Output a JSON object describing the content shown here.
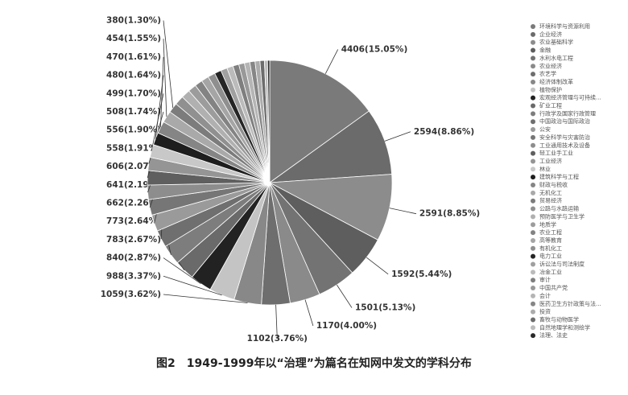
{
  "chart_data": {
    "type": "pie",
    "title": "图2　1949-1999年以“治理”为篇名在知网中发文的学科分布",
    "categories": [
      "环境科学与资源利用",
      "企业经济",
      "农业基础科学",
      "金融",
      "水利水电工程",
      "农业经济",
      "农艺学",
      "经济体制改革",
      "植物保护",
      "宏观经济管理与可持续...",
      "矿业工程",
      "行政学及国家行政管理",
      "中国政治与国际政治",
      "公安",
      "安全科学与灾害防治",
      "工业通用技术及设备",
      "轻工业手工业",
      "工业经济",
      "林业",
      "建筑科学与工程",
      "财政与税收",
      "无机化工",
      "贸易经济",
      "公路与水路运输",
      "预防医学与卫生学",
      "地质学",
      "农业工程",
      "高等教育",
      "有机化工",
      "电力工业",
      "诉讼法与司法制度",
      "冶金工业",
      "审计",
      "中国共产党",
      "会计",
      "医药卫生方针政策与法...",
      "投资",
      "畜牧与动物医学",
      "自然地理学和测绘学",
      "法理、法史"
    ],
    "values": [
      4406,
      2594,
      2591,
      1592,
      1501,
      1170,
      1102,
      1059,
      988,
      840,
      783,
      773,
      662,
      641,
      606,
      558,
      556,
      508,
      499,
      480,
      470,
      454,
      380,
      360,
      340,
      320,
      300,
      290,
      280,
      260,
      250,
      240,
      230,
      220,
      210,
      200,
      190,
      170,
      120,
      83
    ],
    "value_labels": [
      "4406(15.05%)",
      "2594(8.86%)",
      "2591(8.85%)",
      "1592(5.44%)",
      "1501(5.13%)",
      "1170(4.00%)",
      "1102(3.76%)",
      "1059(3.62%)",
      "988(3.37%)",
      "840(2.87%)",
      "783(2.67%)",
      "773(2.64%)",
      "662(2.26%)",
      "641(2.19%)",
      "606(2.07%)",
      "558(1.91%)",
      "556(1.90%)",
      "508(1.74%)",
      "499(1.70%)",
      "480(1.64%)",
      "470(1.61%)",
      "454(1.55%)",
      "380(1.30%)",
      null,
      null,
      null,
      null,
      null,
      null,
      null,
      null,
      null,
      null,
      null,
      null,
      null,
      null,
      null,
      null,
      null
    ],
    "colors": [
      "#7a7a7a",
      "#6b6b6b",
      "#8c8c8c",
      "#5e5e5e",
      "#737373",
      "#8a8a8a",
      "#6e6e6e",
      "#888888",
      "#c4c4c4",
      "#222222",
      "#6a6a6a",
      "#7d7d7d",
      "#6f6f6f",
      "#9a9a9a",
      "#767676",
      "#8d8d8d",
      "#5f5f5f",
      "#959595",
      "#c8c8c8",
      "#1e1e1e",
      "#858585",
      "#a9a9a9",
      "#7c7c7c",
      "#909090",
      "#b0b0b0",
      "#9c9c9c",
      "#838383",
      "#a5a5a5",
      "#8f8f8f",
      "#252525",
      "#a0a0a0",
      "#bbbbbb",
      "#7f7f7f",
      "#999999",
      "#b5b5b5",
      "#868686",
      "#acacac",
      "#6c6c6c",
      "#bcbcbc",
      "#2a2a2a"
    ]
  }
}
